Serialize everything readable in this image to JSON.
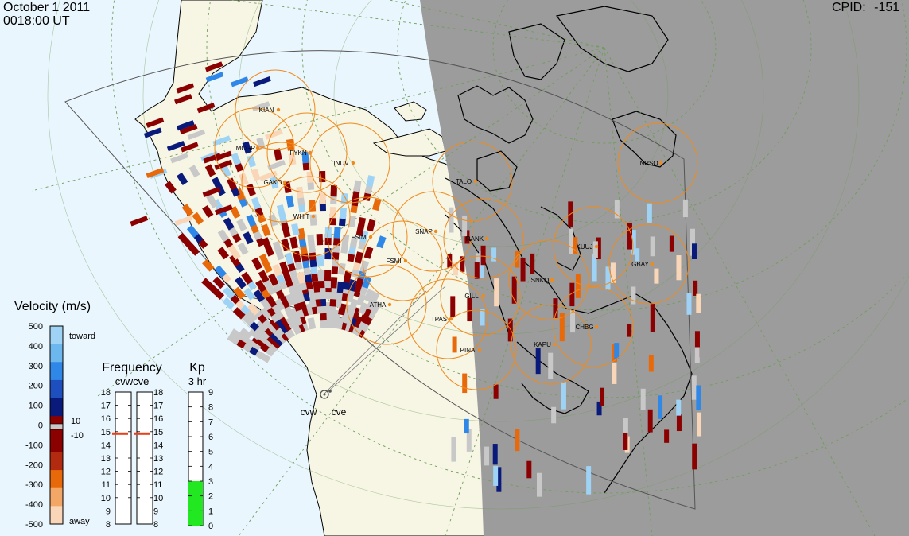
{
  "header": {
    "date": "October  1 2011",
    "time": "0018:00 UT",
    "cpid_label": "CPID:",
    "cpid_value": "-151"
  },
  "stations": [
    {
      "code": "KIAN"
    },
    {
      "code": "MCGR"
    },
    {
      "code": "FYKN"
    },
    {
      "code": "INUV"
    },
    {
      "code": "GAKO"
    },
    {
      "code": "TALO"
    },
    {
      "code": "WHIT"
    },
    {
      "code": "FSIM"
    },
    {
      "code": "SNAP"
    },
    {
      "code": "FSMI"
    },
    {
      "code": "RANK"
    },
    {
      "code": "KUUJ"
    },
    {
      "code": "GBAY"
    },
    {
      "code": "NRSQ"
    },
    {
      "code": "SNKQ"
    },
    {
      "code": "GILL"
    },
    {
      "code": "ATHA"
    },
    {
      "code": "TPAS"
    },
    {
      "code": "CHBG"
    },
    {
      "code": "KAPU"
    },
    {
      "code": "PINA"
    }
  ],
  "radars": [
    {
      "code": "cvw"
    },
    {
      "code": "cve"
    }
  ],
  "velocity_legend": {
    "title": "Velocity (m/s)",
    "ticks": [
      "500",
      "400",
      "300",
      "200",
      "100",
      "0",
      "-100",
      "-200",
      "-300",
      "-400",
      "-500"
    ],
    "toward_label": "toward",
    "away_label": "away",
    "ground_scatter_labels": [
      "10",
      "-10"
    ],
    "colors": {
      "toward_light": "#9fd3f5",
      "toward_mid": "#2f87e8",
      "toward_dark": "#0a1a7a",
      "ground_scatter": "#c8c8c8",
      "away_dark": "#8b0000",
      "away_mid": "#e8690a",
      "away_light": "#f9d6b8"
    }
  },
  "frequency_panel": {
    "title": "Frequency",
    "subtitle": "cvwcve",
    "ticks": [
      "18",
      "17",
      "16",
      "15",
      "14",
      "13",
      "12",
      "11",
      "10",
      "9",
      "8"
    ],
    "cvw_frequency_mhz": 15,
    "cve_frequency_mhz": 15
  },
  "kp_panel": {
    "title": "Kp",
    "subtitle": "3 hr",
    "ticks": [
      "9",
      "8",
      "7",
      "6",
      "5",
      "4",
      "3",
      "2",
      "1",
      "0"
    ],
    "kp_value": 3,
    "bar_color": "#22e822"
  },
  "map_colors": {
    "ocean_day": "#eaf6fd",
    "land_day": "#f7f5e4",
    "night": "#9c9c9c",
    "fov_circle": "#f08a1c",
    "station_dot": "#f08a1c"
  }
}
